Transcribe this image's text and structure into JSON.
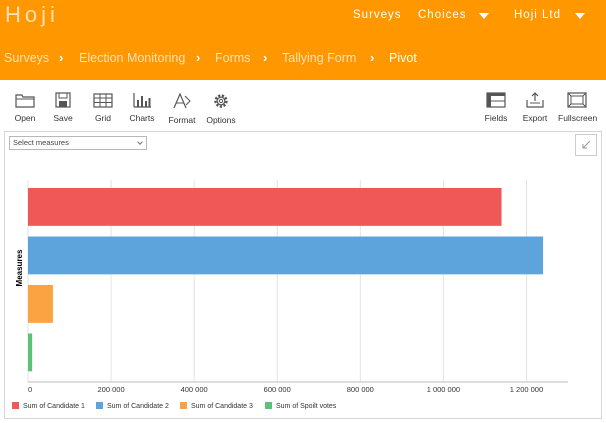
{
  "header": {
    "brand": "Hoji",
    "nav": [
      {
        "label": "Surveys"
      },
      {
        "label": "Choices"
      },
      {
        "label": "Hoji Ltd"
      }
    ]
  },
  "breadcrumb": [
    "Surveys",
    "Election Monitoring",
    "Forms",
    "Tallying Form",
    "Pivot"
  ],
  "toolbar": {
    "open": "Open",
    "save": "Save",
    "grid": "Grid",
    "charts": "Charts",
    "format": "Format",
    "options": "Options",
    "fields": "Fields",
    "export": "Export",
    "fullscreen": "Fullscreen"
  },
  "measures_select": {
    "value": "Select measures"
  },
  "chart_data": {
    "type": "bar",
    "orientation": "horizontal",
    "ylabel": "Measures",
    "xlim": [
      0,
      1300000
    ],
    "x_ticks": [
      {
        "value": 0,
        "label": "0"
      },
      {
        "value": 200000,
        "label": "200 000"
      },
      {
        "value": 400000,
        "label": "400 000"
      },
      {
        "value": 600000,
        "label": "600 000"
      },
      {
        "value": 800000,
        "label": "800 000"
      },
      {
        "value": 1000000,
        "label": "1 000 000"
      },
      {
        "value": 1200000,
        "label": "1 200 000"
      }
    ],
    "grid": true,
    "legend_position": "bottom-left",
    "series": [
      {
        "name": "Sum of Candidate 1",
        "value": 1140000,
        "color": "#f05757"
      },
      {
        "name": "Sum of Candidate 2",
        "value": 1240000,
        "color": "#5da3dc"
      },
      {
        "name": "Sum of Candidate 3",
        "value": 60000,
        "color": "#fba342"
      },
      {
        "name": "Sum of Spoilt votes",
        "value": 10000,
        "color": "#5ec17a"
      }
    ]
  }
}
